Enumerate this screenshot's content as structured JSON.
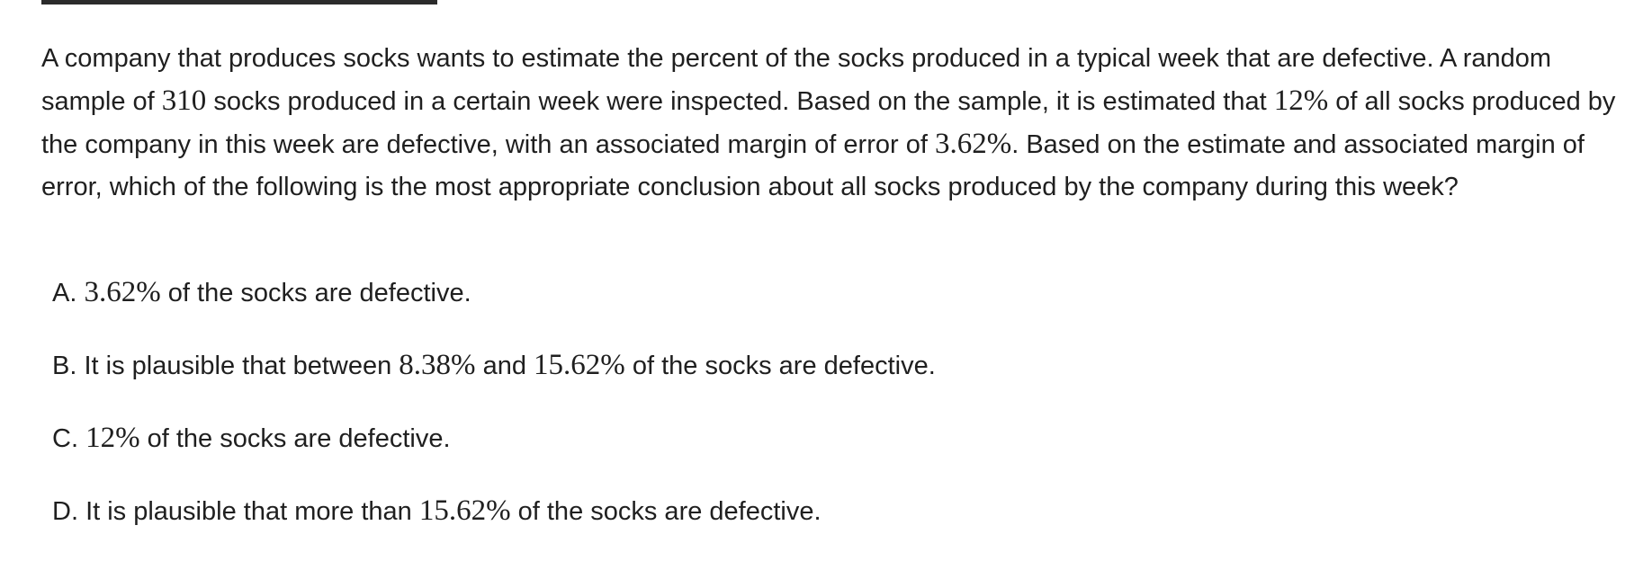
{
  "question": {
    "segments": [
      {
        "text": "A company that produces socks wants to estimate the percent of the socks produced in a typical week that are defective. A random sample of "
      },
      {
        "math": "310"
      },
      {
        "text": " socks produced in a certain week were inspected. Based on the sample, it is estimated that "
      },
      {
        "math": "12%"
      },
      {
        "text": " of all socks produced by the company in this week are defective, with an associated margin of error of "
      },
      {
        "math": "3.62%"
      },
      {
        "text": ". Based on the estimate and associated margin of error, which of the following is the most appropriate conclusion about all socks produced by the company during this week?"
      }
    ]
  },
  "options": [
    {
      "letter": "A.",
      "segments": [
        {
          "math": "3.62%"
        },
        {
          "text": " of the socks are defective."
        }
      ]
    },
    {
      "letter": "B.",
      "segments": [
        {
          "text": "It is plausible that between "
        },
        {
          "math": "8.38%"
        },
        {
          "text": " and "
        },
        {
          "math": "15.62%"
        },
        {
          "text": " of the socks are defective."
        }
      ]
    },
    {
      "letter": "C.",
      "segments": [
        {
          "math": "12%"
        },
        {
          "text": " of the socks are defective."
        }
      ]
    },
    {
      "letter": "D.",
      "segments": [
        {
          "text": "It is plausible that more than "
        },
        {
          "math": "15.62%"
        },
        {
          "text": " of the socks are defective."
        }
      ]
    }
  ]
}
